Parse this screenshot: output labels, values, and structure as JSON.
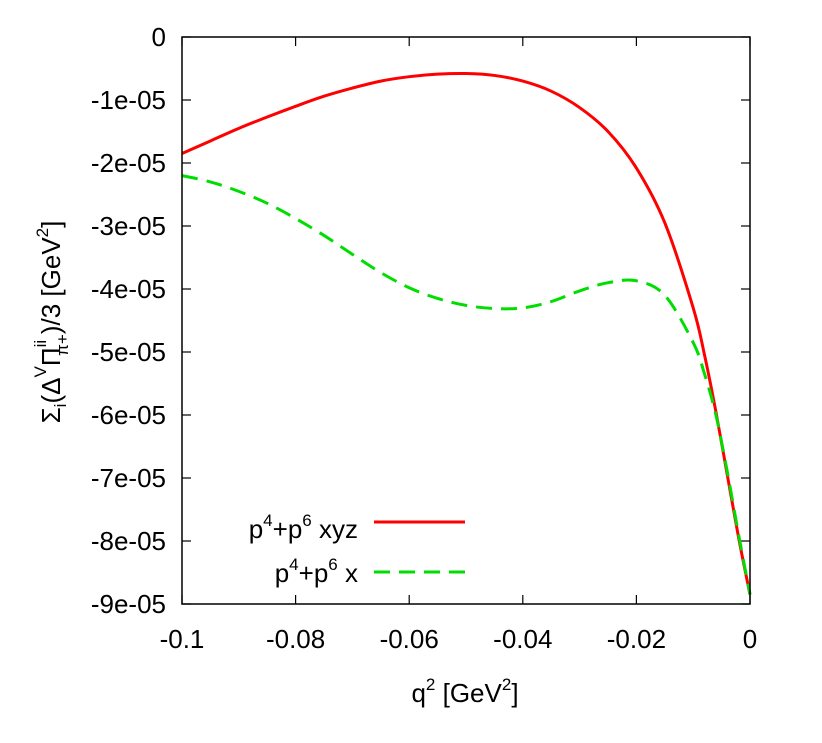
{
  "chart_data": {
    "type": "line",
    "xlabel": "q",
    "xlabel_sup": "2",
    "xlabel_unit": " [GeV",
    "xlabel_unit_sup": "2",
    "xlabel_close": "]",
    "ylabel": "Σ",
    "ylabel_sub_i": "i",
    "ylabel_open": "(Δ",
    "ylabel_sup_V": "V",
    "ylabel_pi": "Π",
    "ylabel_sup_ii": "ii",
    "ylabel_sub_pi": "π+",
    "ylabel_rest": ")/3 [GeV",
    "ylabel_unit_sup": "2",
    "ylabel_close": "]",
    "xlim": [
      -0.1,
      0
    ],
    "ylim": [
      -9e-05,
      0
    ],
    "xticks": [
      -0.1,
      -0.08,
      -0.06,
      -0.04,
      -0.02,
      0
    ],
    "xtick_labels": [
      "-0.1",
      "-0.08",
      "-0.06",
      "-0.04",
      "-0.02",
      "0"
    ],
    "yticks": [
      0,
      -1e-05,
      -2e-05,
      -3e-05,
      -4e-05,
      -5e-05,
      -6e-05,
      -7e-05,
      -8e-05,
      -9e-05
    ],
    "ytick_labels": [
      "0",
      "-1e-05",
      "-2e-05",
      "-3e-05",
      "-4e-05",
      "-5e-05",
      "-6e-05",
      "-7e-05",
      "-8e-05",
      "-9e-05"
    ],
    "grid": false,
    "legend_position": "bottom-left",
    "series": [
      {
        "name_parts": [
          "p",
          "4",
          "+p",
          "6",
          " xyz"
        ],
        "color": "#ff0000",
        "dash": "solid",
        "x": [
          -0.1,
          -0.095,
          -0.09,
          -0.085,
          -0.08,
          -0.075,
          -0.07,
          -0.065,
          -0.06,
          -0.055,
          -0.05,
          -0.045,
          -0.04,
          -0.035,
          -0.03,
          -0.025,
          -0.02,
          -0.015,
          -0.01,
          -0.008,
          -0.006,
          -0.004,
          -0.002,
          0
        ],
        "y": [
          -1.85e-05,
          -1.65e-05,
          -1.45e-05,
          -1.27e-05,
          -1.1e-05,
          -9.4e-06,
          -8.1e-06,
          -7e-06,
          -6.3e-06,
          -5.9e-06,
          -5.8e-06,
          -6.1e-06,
          -7e-06,
          -8.6e-06,
          -1.12e-05,
          -1.5e-05,
          -2.08e-05,
          -2.95e-05,
          -4.3e-05,
          -5.05e-05,
          -5.95e-05,
          -6.95e-05,
          -7.95e-05,
          -8.85e-05
        ]
      },
      {
        "name_parts": [
          "p",
          "4",
          "+p",
          "6",
          "  x"
        ],
        "color": "#00dd00",
        "dash": "dashed",
        "x": [
          -0.1,
          -0.095,
          -0.09,
          -0.085,
          -0.08,
          -0.075,
          -0.07,
          -0.065,
          -0.06,
          -0.055,
          -0.05,
          -0.045,
          -0.04,
          -0.035,
          -0.03,
          -0.025,
          -0.02,
          -0.015,
          -0.01,
          -0.008,
          -0.006,
          -0.004,
          -0.002,
          0
        ],
        "y": [
          -2.2e-05,
          -2.3e-05,
          -2.45e-05,
          -2.64e-05,
          -2.88e-05,
          -3.15e-05,
          -3.45e-05,
          -3.74e-05,
          -3.98e-05,
          -4.15e-05,
          -4.26e-05,
          -4.31e-05,
          -4.3e-05,
          -4.2e-05,
          -4.03e-05,
          -3.9e-05,
          -3.87e-05,
          -4.1e-05,
          -4.85e-05,
          -5.35e-05,
          -6e-05,
          -6.9e-05,
          -7.9e-05,
          -8.85e-05
        ]
      }
    ]
  }
}
